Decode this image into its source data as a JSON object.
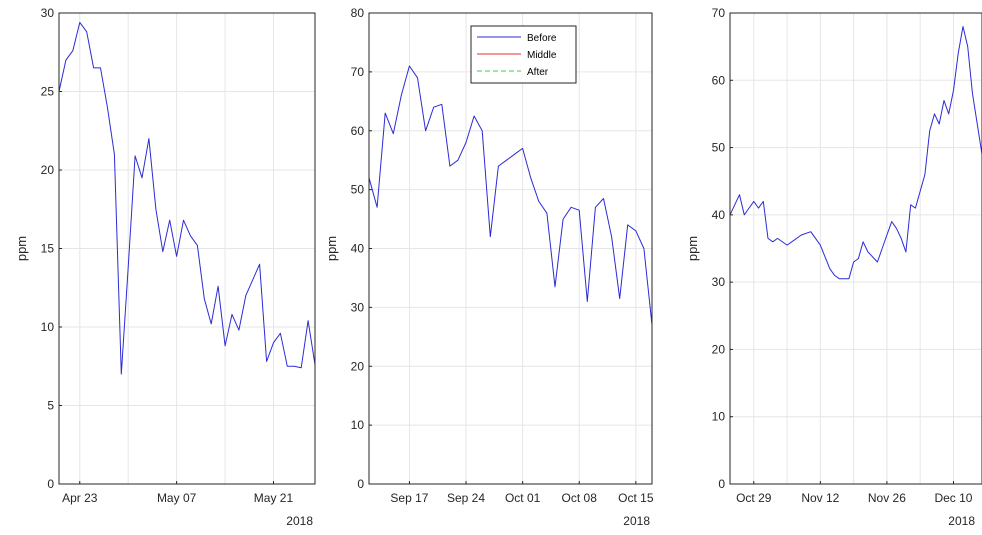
{
  "colors": {
    "before": "#2b2bd6",
    "middle": "#e03030",
    "after": "#3ecf3e",
    "grid": "#e6e6e6",
    "axis": "#262626"
  },
  "chart_data": [
    {
      "type": "line",
      "ylabel": "ppm",
      "ylim": [
        0,
        30
      ],
      "yticks": [
        0,
        5,
        10,
        15,
        20,
        25,
        30
      ],
      "xlim": [
        "2018-04-20",
        "2018-05-27"
      ],
      "xticks": [
        {
          "date": "2018-04-23",
          "label": "Apr 23"
        },
        {
          "date": "2018-05-07",
          "label": "May 07"
        },
        {
          "date": "2018-05-21",
          "label": "May 21"
        }
      ],
      "xgrid_extra": [
        "2018-04-30",
        "2018-05-14"
      ],
      "year_label": "2018",
      "grid": true,
      "series": [
        {
          "key": "before",
          "style": "solid",
          "x": [
            "2018-04-20",
            "2018-04-21",
            "2018-04-22",
            "2018-04-23",
            "2018-04-24",
            "2018-04-25",
            "2018-04-26",
            "2018-04-27",
            "2018-04-28",
            "2018-04-29",
            "2018-04-30",
            "2018-05-01",
            "2018-05-02",
            "2018-05-03",
            "2018-05-04",
            "2018-05-05",
            "2018-05-06",
            "2018-05-07",
            "2018-05-08",
            "2018-05-09",
            "2018-05-10",
            "2018-05-11",
            "2018-05-12",
            "2018-05-13",
            "2018-05-14",
            "2018-05-15",
            "2018-05-16",
            "2018-05-17",
            "2018-05-18",
            "2018-05-19",
            "2018-05-20",
            "2018-05-21",
            "2018-05-22",
            "2018-05-23",
            "2018-05-24",
            "2018-05-25",
            "2018-05-26",
            "2018-05-27"
          ],
          "y": [
            25.0,
            27.0,
            27.6,
            29.4,
            28.8,
            26.5,
            26.5,
            24.0,
            21.0,
            7.0,
            13.8,
            20.9,
            19.5,
            22.0,
            17.5,
            14.8,
            16.8,
            14.5,
            16.8,
            15.8,
            15.2,
            11.8,
            10.2,
            12.6,
            8.8,
            10.8,
            9.8,
            12.0,
            13.0,
            14.0,
            7.8,
            9.0,
            9.6,
            7.5,
            7.5,
            7.4,
            10.4,
            7.6
          ]
        },
        {
          "key": "middle",
          "style": "solid",
          "x": [
            "2018-04-20",
            "2018-05-27"
          ],
          "y": [
            0,
            0
          ]
        },
        {
          "key": "after",
          "style": "dashed",
          "x": [
            "2018-04-20",
            "2018-05-27"
          ],
          "y": [
            0,
            0
          ]
        }
      ]
    },
    {
      "type": "line",
      "ylabel": "ppm",
      "ylim": [
        0,
        80
      ],
      "yticks": [
        0,
        10,
        20,
        30,
        40,
        50,
        60,
        70,
        80
      ],
      "xlim": [
        "2018-09-12",
        "2018-10-17"
      ],
      "xticks": [
        {
          "date": "2018-09-17",
          "label": "Sep 17"
        },
        {
          "date": "2018-09-24",
          "label": "Sep 24"
        },
        {
          "date": "2018-10-01",
          "label": "Oct 01"
        },
        {
          "date": "2018-10-08",
          "label": "Oct 08"
        },
        {
          "date": "2018-10-15",
          "label": "Oct 15"
        }
      ],
      "xgrid_extra": [],
      "year_label": "2018",
      "grid": true,
      "legend": {
        "position": "top-right",
        "entries": [
          {
            "key": "before",
            "label": "Before"
          },
          {
            "key": "middle",
            "label": "Middle"
          },
          {
            "key": "after",
            "label": "After"
          }
        ]
      },
      "series": [
        {
          "key": "before",
          "style": "solid",
          "x": [
            "2018-09-12",
            "2018-09-13",
            "2018-09-14",
            "2018-09-15",
            "2018-09-16",
            "2018-09-17",
            "2018-09-18",
            "2018-09-19",
            "2018-09-20",
            "2018-09-21",
            "2018-09-22",
            "2018-09-23",
            "2018-09-24",
            "2018-09-25",
            "2018-09-26",
            "2018-09-27",
            "2018-09-28",
            "2018-09-29",
            "2018-09-30",
            "2018-10-01",
            "2018-10-02",
            "2018-10-03",
            "2018-10-04",
            "2018-10-05",
            "2018-10-06",
            "2018-10-07",
            "2018-10-08",
            "2018-10-09",
            "2018-10-10",
            "2018-10-11",
            "2018-10-12",
            "2018-10-13",
            "2018-10-14",
            "2018-10-15",
            "2018-10-16",
            "2018-10-17"
          ],
          "y": [
            52.0,
            47.0,
            63.0,
            59.5,
            66.0,
            71.0,
            69.0,
            60.0,
            64.0,
            64.5,
            54.0,
            55.0,
            58.0,
            62.5,
            60.0,
            42.0,
            54.0,
            55.0,
            56.0,
            57.0,
            52.0,
            48.0,
            46.0,
            33.5,
            45.0,
            47.0,
            46.5,
            31.0,
            47.0,
            48.5,
            42.0,
            31.5,
            44.0,
            43.0,
            40.0,
            27.0
          ]
        },
        {
          "key": "middle",
          "style": "solid",
          "x": [
            "2018-09-12",
            "2018-10-17"
          ],
          "y": [
            0,
            0
          ]
        },
        {
          "key": "after",
          "style": "dashed",
          "x": [
            "2018-09-12",
            "2018-10-17"
          ],
          "y": [
            0,
            0
          ]
        }
      ]
    },
    {
      "type": "line",
      "ylabel": "ppm",
      "ylim": [
        0,
        70
      ],
      "yticks": [
        0,
        10,
        20,
        30,
        40,
        50,
        60,
        70
      ],
      "xlim": [
        "2018-10-24",
        "2018-12-16"
      ],
      "xticks": [
        {
          "date": "2018-10-29",
          "label": "Oct 29"
        },
        {
          "date": "2018-11-12",
          "label": "Nov 12"
        },
        {
          "date": "2018-11-26",
          "label": "Nov 26"
        },
        {
          "date": "2018-12-10",
          "label": "Dec 10"
        }
      ],
      "xgrid_extra": [
        "2018-11-05",
        "2018-11-19",
        "2018-12-03"
      ],
      "year_label": "2018",
      "grid": true,
      "series": [
        {
          "key": "before",
          "style": "solid",
          "x": [
            "2018-10-24",
            "2018-10-26",
            "2018-10-27",
            "2018-10-28",
            "2018-10-29",
            "2018-10-30",
            "2018-10-31",
            "2018-11-01",
            "2018-11-02",
            "2018-11-03",
            "2018-11-05",
            "2018-11-06",
            "2018-11-08",
            "2018-11-10",
            "2018-11-12",
            "2018-11-14",
            "2018-11-15",
            "2018-11-16",
            "2018-11-18",
            "2018-11-19",
            "2018-11-20",
            "2018-11-21",
            "2018-11-22",
            "2018-11-24",
            "2018-11-26",
            "2018-11-27",
            "2018-11-28",
            "2018-11-29",
            "2018-11-30",
            "2018-12-01",
            "2018-12-02",
            "2018-12-04",
            "2018-12-05",
            "2018-12-06",
            "2018-12-07",
            "2018-12-08",
            "2018-12-09",
            "2018-12-10",
            "2018-12-11",
            "2018-12-12",
            "2018-12-13",
            "2018-12-14",
            "2018-12-16"
          ],
          "y": [
            40.0,
            43.0,
            40.0,
            41.0,
            42.0,
            41.0,
            42.0,
            36.5,
            36.0,
            36.5,
            35.5,
            36.0,
            37.0,
            37.5,
            35.5,
            32.0,
            31.0,
            30.5,
            30.5,
            33.0,
            33.5,
            36.0,
            34.5,
            33.0,
            37.0,
            39.0,
            38.0,
            36.5,
            34.5,
            41.5,
            41.0,
            46.0,
            52.5,
            55.0,
            53.5,
            57.0,
            55.0,
            58.5,
            64.0,
            68.0,
            65.0,
            58.0,
            49.0
          ]
        },
        {
          "key": "middle",
          "style": "solid",
          "x": [
            "2018-10-24",
            "2018-12-16"
          ],
          "y": [
            0,
            0
          ]
        },
        {
          "key": "after",
          "style": "dashed",
          "x": [
            "2018-10-24",
            "2018-12-16"
          ],
          "y": [
            0,
            0
          ]
        }
      ]
    }
  ]
}
